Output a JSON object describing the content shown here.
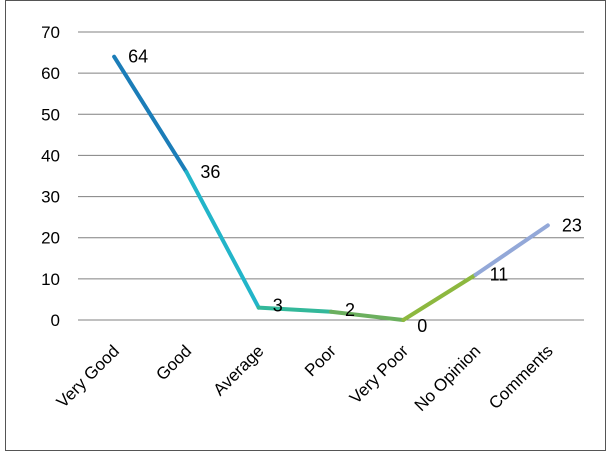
{
  "chart_data": {
    "type": "line",
    "title": "",
    "xlabel": "",
    "ylabel": "",
    "categories": [
      "Very Good",
      "Good",
      "Average",
      "Poor",
      "Very Poor",
      "No Opinion",
      "Comments"
    ],
    "values": [
      64,
      36,
      3,
      2,
      0,
      11,
      23
    ],
    "ylim": [
      0,
      70
    ],
    "yticks": [
      "0",
      "10",
      "20",
      "30",
      "40",
      "50",
      "60",
      "70"
    ],
    "grid": true,
    "legend": "none",
    "segment_colors": [
      "#1B7DB8",
      "#22B5C9",
      "#33B89A",
      "#6BAF5E",
      "#8DB83F",
      "#93A8D8"
    ]
  }
}
